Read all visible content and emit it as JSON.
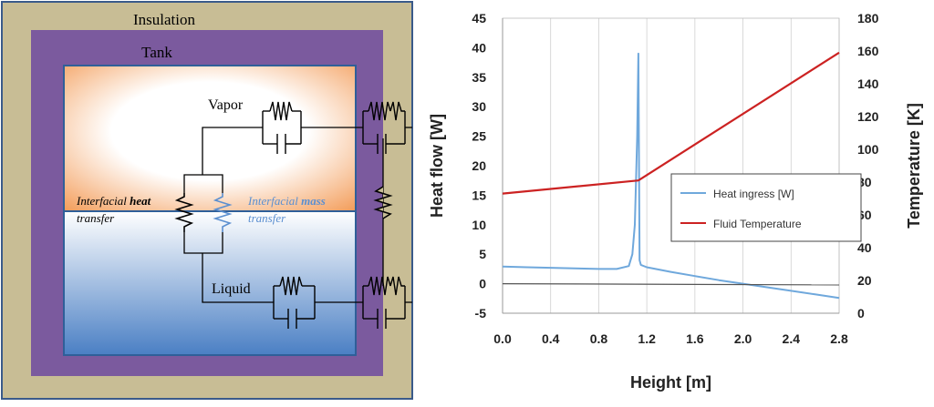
{
  "diagram": {
    "insulation_label": "Insulation",
    "tank_label": "Tank",
    "vapor_label": "Vapor",
    "liquid_label": "Liquid",
    "interfacial_heat": {
      "line1_a": "Interfacial ",
      "line1_b": "heat",
      "line2": "transfer"
    },
    "interfacial_mass": {
      "line1_a": "Interfacial ",
      "line1_b": "mass",
      "line2": "transfer"
    },
    "colors": {
      "insulation": "#c8bd95",
      "tank": "#7b5a9e",
      "vapor_edge": "#f0a060",
      "liquid_edge": "#3c70b8",
      "heat_text": "#000000",
      "mass_text": "#5b8fd0"
    }
  },
  "chart_data": {
    "type": "line",
    "xlabel": "Height [m]",
    "ylabel": "Heat flow [W]",
    "y2label": "Temperature [K]",
    "xlim": [
      0,
      2.8
    ],
    "ylim": [
      -5,
      45
    ],
    "y2lim": [
      0,
      180
    ],
    "xticks": [
      0.0,
      0.4,
      0.8,
      1.2,
      1.6,
      2.0,
      2.4,
      2.8
    ],
    "xtick_labels": [
      "0.0",
      "0.4",
      "0.8",
      "1.2",
      "1.6",
      "2.0",
      "2.4",
      "2.8"
    ],
    "yticks": [
      -5,
      0,
      5,
      10,
      15,
      20,
      25,
      30,
      35,
      40,
      45
    ],
    "y2ticks": [
      0,
      20,
      40,
      60,
      80,
      100,
      120,
      140,
      160,
      180
    ],
    "grid": "vertical",
    "legend_position": "center-right",
    "series": [
      {
        "name": "Heat ingress [W]",
        "axis": "left",
        "color": "#6fa8dc",
        "x": [
          0.0,
          0.2,
          0.4,
          0.6,
          0.8,
          0.95,
          1.05,
          1.08,
          1.1,
          1.12,
          1.13,
          1.14,
          1.15,
          1.2,
          1.4,
          1.6,
          1.8,
          2.0,
          2.2,
          2.4,
          2.6,
          2.8
        ],
        "y": [
          2.9,
          2.8,
          2.7,
          2.6,
          2.5,
          2.5,
          3.0,
          5.0,
          10.0,
          25.0,
          39.0,
          4.0,
          3.2,
          2.8,
          2.0,
          1.3,
          0.6,
          0.0,
          -0.6,
          -1.2,
          -1.8,
          -2.4
        ]
      },
      {
        "name": "Fluid Temperature",
        "axis": "right",
        "color": "#cc2222",
        "x": [
          0.0,
          1.13,
          2.8
        ],
        "y": [
          73,
          81,
          159
        ]
      },
      {
        "name": "",
        "axis": "left",
        "color": "#555555",
        "x": [
          0.0,
          2.8
        ],
        "y": [
          0.0,
          -0.2
        ]
      }
    ]
  }
}
